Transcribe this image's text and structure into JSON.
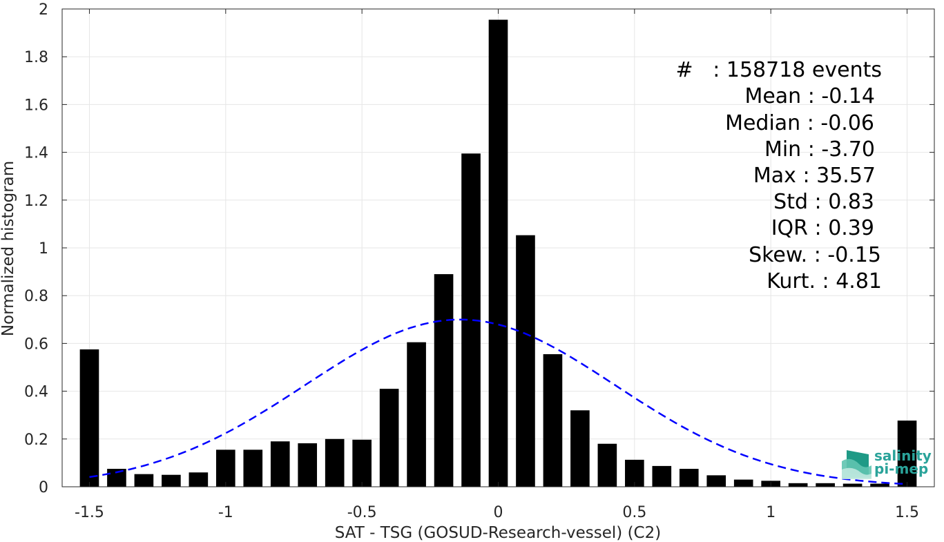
{
  "chart_data": {
    "type": "bar",
    "xlabel": "SAT - TSG (GOSUD-Research-vessel) (C2)",
    "ylabel": "Normalized histogram",
    "xlim": [
      -1.6,
      1.6
    ],
    "ylim": [
      0,
      2
    ],
    "grid": true,
    "xticks": [
      -1.5,
      -1,
      -0.5,
      0,
      0.5,
      1,
      1.5
    ],
    "xtick_labels": [
      "-1.5",
      "-1",
      "-0.5",
      "0",
      "0.5",
      "1",
      "1.5"
    ],
    "yticks": [
      0,
      0.2,
      0.4,
      0.6,
      0.8,
      1,
      1.2,
      1.4,
      1.6,
      1.8,
      2
    ],
    "ytick_labels": [
      "0",
      "0.2",
      "0.4",
      "0.6",
      "0.8",
      "1",
      "1.2",
      "1.4",
      "1.6",
      "1.8",
      "2"
    ],
    "bar_width": 0.07,
    "x": [
      -1.5,
      -1.4,
      -1.3,
      -1.2,
      -1.1,
      -1.0,
      -0.9,
      -0.8,
      -0.7,
      -0.6,
      -0.5,
      -0.4,
      -0.3,
      -0.2,
      -0.1,
      0.0,
      0.1,
      0.2,
      0.3,
      0.4,
      0.5,
      0.6,
      0.7,
      0.8,
      0.9,
      1.0,
      1.1,
      1.2,
      1.3,
      1.4,
      1.5
    ],
    "values": [
      0.575,
      0.075,
      0.053,
      0.05,
      0.06,
      0.155,
      0.155,
      0.19,
      0.182,
      0.2,
      0.197,
      0.41,
      0.605,
      0.89,
      1.395,
      1.955,
      1.053,
      0.555,
      0.32,
      0.18,
      0.113,
      0.087,
      0.075,
      0.048,
      0.03,
      0.025,
      0.015,
      0.015,
      0.013,
      0.013,
      0.277
    ],
    "bar_color": "#000000",
    "fit_curve": {
      "style": "dashed",
      "color": "#0000ff",
      "mean": -0.14,
      "std": 0.57,
      "peak": 0.7,
      "x_range": [
        -1.5,
        1.5
      ]
    },
    "stats": {
      "events": "#   : 158718 events",
      "mean": "Mean : -0.14",
      "median": "Median : -0.06",
      "min": "Min : -3.70",
      "max": "Max : 35.57",
      "std": "Std : 0.83",
      "iqr": "IQR : 0.39",
      "skew": "Skew. : -0.15",
      "kurt": "Kurt. : 4.81"
    }
  },
  "logo": {
    "line1": "salinity",
    "line2": "pi-mep",
    "color": "#2aa39a"
  }
}
